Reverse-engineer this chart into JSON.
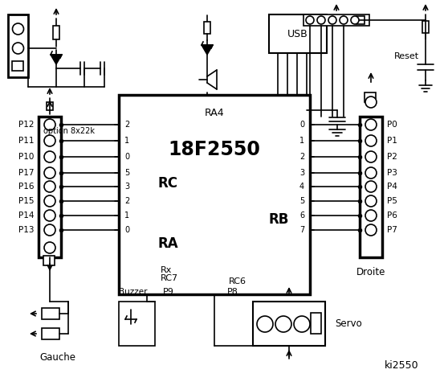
{
  "bg_color": "#ffffff",
  "line_color": "#000000",
  "chip_label": "18F2550",
  "chip_sublabel": "RA4",
  "rc_label": "RC",
  "ra_label": "RA",
  "rb_label": "RB",
  "rc_nums": [
    "2",
    "1",
    "0",
    "5",
    "3",
    "2",
    "1",
    "0"
  ],
  "rb_nums": [
    "0",
    "1",
    "2",
    "3",
    "4",
    "5",
    "6",
    "7"
  ],
  "left_ports": [
    "P12",
    "P11",
    "P10",
    "P17",
    "P16",
    "P15",
    "P14",
    "P13"
  ],
  "right_ports": [
    "P0",
    "P1",
    "P2",
    "P3",
    "P4",
    "P5",
    "P6",
    "P7"
  ],
  "option_label": "option 8x22k",
  "usb_label": "USB",
  "reset_label": "Reset",
  "gauche_label": "Gauche",
  "droite_label": "Droite",
  "buzzer_label": "Buzzer",
  "servo_label": "Servo",
  "p8_label": "P8",
  "p9_label": "P9",
  "ki_label": "ki2550",
  "rx_label": "Rx",
  "rc7_label": "RC7",
  "rc6_label": "RC6"
}
